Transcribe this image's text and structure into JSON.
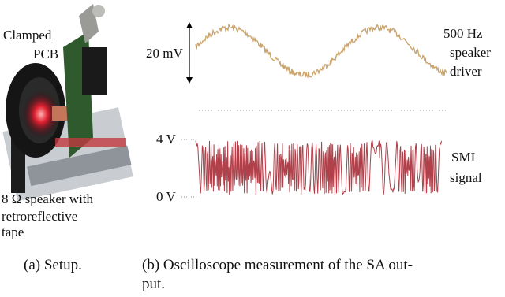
{
  "setup_labels": {
    "pcb": [
      "Clamped",
      "PCB"
    ],
    "speaker": [
      "8 Ω speaker with",
      "retroreflective",
      "tape"
    ]
  },
  "scope": {
    "top_scale": "20 mV",
    "top_label": [
      "500 Hz",
      "speaker",
      "driver"
    ],
    "bottom_high": "4 V",
    "bottom_low": "0 V",
    "bottom_label": [
      "SMI",
      "signal"
    ]
  },
  "captions": {
    "a": "(a) Setup.",
    "b": [
      "(b) Oscilloscope measurement of the SA out-",
      "put."
    ]
  }
}
